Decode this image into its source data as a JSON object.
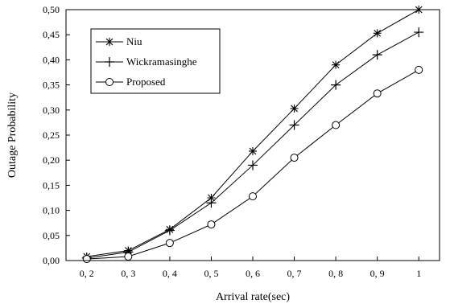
{
  "chart_data": {
    "type": "line",
    "xlabel": "Arrival rate(sec)",
    "ylabel": "Outage Probability",
    "x": [
      0.2,
      0.3,
      0.4,
      0.5,
      0.6,
      0.7,
      0.8,
      0.9,
      1.0
    ],
    "x_tick_labels": [
      "0, 2",
      "0, 3",
      "0, 4",
      "0, 5",
      "0, 6",
      "0, 7",
      "0, 8",
      "0, 9",
      "1"
    ],
    "y_tick_labels": [
      "0,00",
      "0,05",
      "0,10",
      "0,15",
      "0,20",
      "0,25",
      "0,30",
      "0,35",
      "0,40",
      "0,45",
      "0,50"
    ],
    "xlim": [
      0.15,
      1.05
    ],
    "ylim": [
      0,
      0.5
    ],
    "grid": false,
    "legend_position": "top-left",
    "series": [
      {
        "name": "Niu",
        "marker": "asterisk",
        "values": [
          0.008,
          0.02,
          0.062,
          0.125,
          0.218,
          0.303,
          0.39,
          0.453,
          0.5
        ]
      },
      {
        "name": "Wickramasinghe",
        "marker": "plus",
        "values": [
          0.005,
          0.017,
          0.06,
          0.115,
          0.19,
          0.27,
          0.35,
          0.41,
          0.455
        ]
      },
      {
        "name": "Proposed",
        "marker": "circle",
        "values": [
          0.003,
          0.008,
          0.035,
          0.072,
          0.128,
          0.205,
          0.27,
          0.333,
          0.38
        ]
      }
    ]
  }
}
